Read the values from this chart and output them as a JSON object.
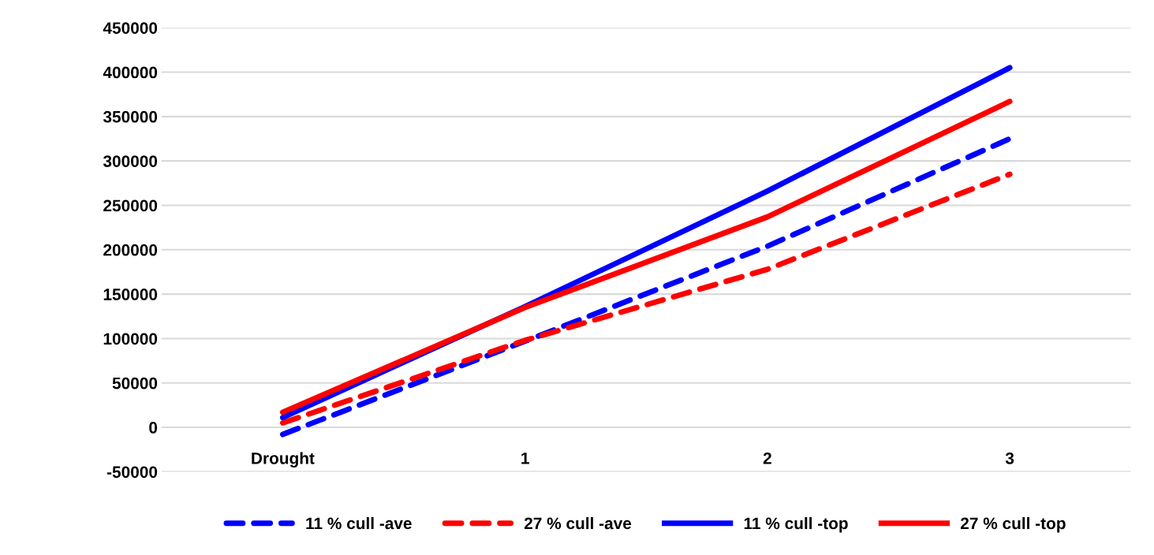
{
  "chart_data": {
    "type": "line",
    "categories": [
      "Drought",
      "1",
      "2",
      "3"
    ],
    "series": [
      {
        "name": "11 % cull -ave",
        "color": "#0000ff",
        "line_style": "dashed",
        "values": [
          -8000,
          97000,
          204000,
          325000
        ]
      },
      {
        "name": "27 % cull -ave",
        "color": "#ff0000",
        "line_style": "dashed",
        "values": [
          5000,
          98000,
          178000,
          285000
        ]
      },
      {
        "name": "11 % cull -top",
        "color": "#0000ff",
        "line_style": "solid",
        "values": [
          11000,
          136000,
          266000,
          405000
        ]
      },
      {
        "name": "27 % cull -top",
        "color": "#ff0000",
        "line_style": "solid",
        "values": [
          17000,
          135000,
          237000,
          367000
        ]
      }
    ],
    "ylim": [
      -50000,
      450000
    ],
    "yticks": [
      -50000,
      0,
      50000,
      100000,
      150000,
      200000,
      250000,
      300000,
      350000,
      400000,
      450000
    ],
    "grid": "y",
    "legend": "bottom",
    "marker": "none"
  }
}
